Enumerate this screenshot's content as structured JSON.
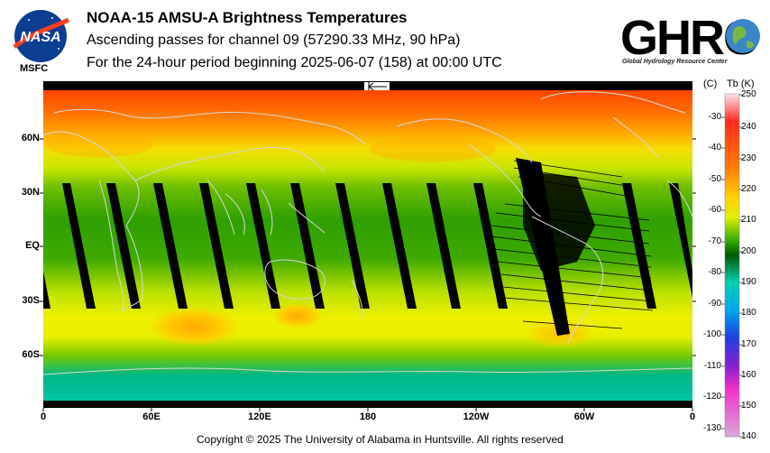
{
  "header": {
    "title": "NOAA-15 AMSU-A Brightness Temperatures",
    "subtitle1": "Ascending passes for channel 09 (57290.33 MHz, 90 hPa)",
    "subtitle2": "For the 24-hour period beginning 2025-06-07 (158) at 00:00 UTC"
  },
  "logos": {
    "nasa_text": "NASA",
    "nasa_tag": "MSFC",
    "ghrc_text": "GHRC",
    "ghrc_tagline": "Global Hydrology Resource Center"
  },
  "map": {
    "y_ticks": [
      "60N",
      "30N",
      "EQ",
      "30S",
      "60S"
    ],
    "x_ticks": [
      "0",
      "60E",
      "120E",
      "180",
      "120W",
      "60W",
      "0"
    ],
    "arrow_icon": "left-arrow-icon"
  },
  "colorbar": {
    "header_c": "(C)",
    "header_k": "Tb (K)",
    "celsius_ticks": [
      "-30",
      "-40",
      "-50",
      "-60",
      "-70",
      "-80",
      "-90",
      "-100",
      "-110",
      "-120",
      "-130"
    ],
    "kelvin_ticks": [
      "250",
      "240",
      "230",
      "220",
      "210",
      "200",
      "190",
      "180",
      "170",
      "160",
      "150",
      "140"
    ],
    "colors": [
      "#f6dde3",
      "#ff2400",
      "#ff7a00",
      "#ffcf00",
      "#e8f000",
      "#2fa500",
      "#005a00",
      "#00c8a0",
      "#00a0e0",
      "#2030d0",
      "#a020c0",
      "#f030c0",
      "#d8a0d8"
    ]
  },
  "footer": {
    "copyright": "Copyright © 2025 The University of Alabama in Huntsville.  All rights reserved"
  }
}
